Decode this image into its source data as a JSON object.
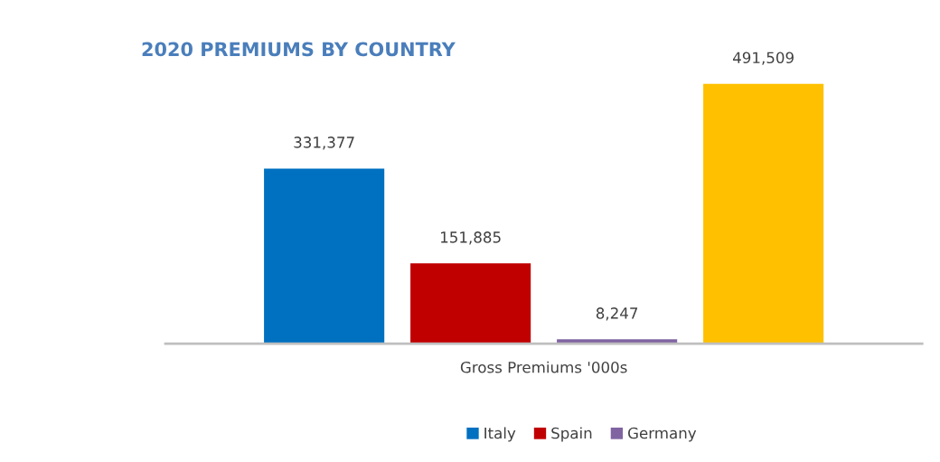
{
  "chart_data": {
    "type": "bar",
    "title": "2020 PREMIUMS BY COUNTRY",
    "xlabel": "Gross Premiums '000s",
    "categories": [
      null
    ],
    "series": [
      {
        "name": "Italy",
        "color": "#0070c0",
        "values": [
          331377
        ],
        "value_labels": [
          "331,377"
        ]
      },
      {
        "name": "Spain",
        "color": "#c00000",
        "values": [
          151885
        ],
        "value_labels": [
          "151,885"
        ]
      },
      {
        "name": "Germany",
        "color": "#8064a2",
        "values": [
          8247
        ],
        "value_labels": [
          "8,247"
        ]
      },
      {
        "color": "#ffc000",
        "values": [
          491509
        ],
        "value_labels": [
          "491,509"
        ]
      }
    ],
    "legend": "bottom",
    "tick_labels": false
  }
}
